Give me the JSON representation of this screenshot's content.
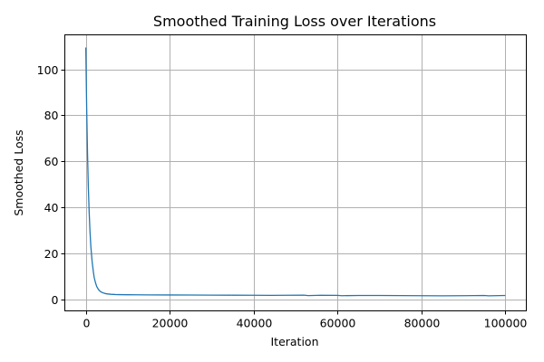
{
  "chart_data": {
    "type": "line",
    "title": "Smoothed Training Loss over Iterations",
    "xlabel": "Iteration",
    "ylabel": "Smoothed Loss",
    "xlim": [
      -5000,
      105000
    ],
    "ylim": [
      -5,
      115
    ],
    "xticks": [
      0,
      20000,
      40000,
      60000,
      80000,
      100000
    ],
    "yticks": [
      0,
      20,
      40,
      60,
      80,
      100
    ],
    "grid": true,
    "line_color": "#1f77b4",
    "series": [
      {
        "x": [
          0,
          200,
          400,
          600,
          800,
          1000,
          1200,
          1500,
          1800,
          2000,
          2300,
          2600,
          3000,
          3500,
          4000,
          4500,
          5000,
          6000,
          7000,
          8000,
          10000,
          12000,
          15000,
          20000,
          25000,
          30000,
          35000,
          40000,
          44000,
          48000,
          52000,
          53000,
          56000,
          60000,
          61000,
          65000,
          70000,
          75000,
          80000,
          85000,
          90000,
          95000,
          96000,
          100000
        ],
        "y": [
          109.5,
          84,
          64,
          49,
          38,
          29.5,
          23,
          16.5,
          12,
          9.5,
          7.3,
          5.6,
          4.3,
          3.4,
          2.9,
          2.6,
          2.4,
          2.2,
          2.1,
          2.05,
          2.0,
          1.97,
          1.95,
          1.9,
          1.88,
          1.85,
          1.82,
          1.78,
          1.75,
          1.8,
          1.85,
          1.65,
          1.8,
          1.75,
          1.6,
          1.7,
          1.7,
          1.65,
          1.6,
          1.55,
          1.6,
          1.7,
          1.55,
          1.7
        ]
      }
    ]
  }
}
